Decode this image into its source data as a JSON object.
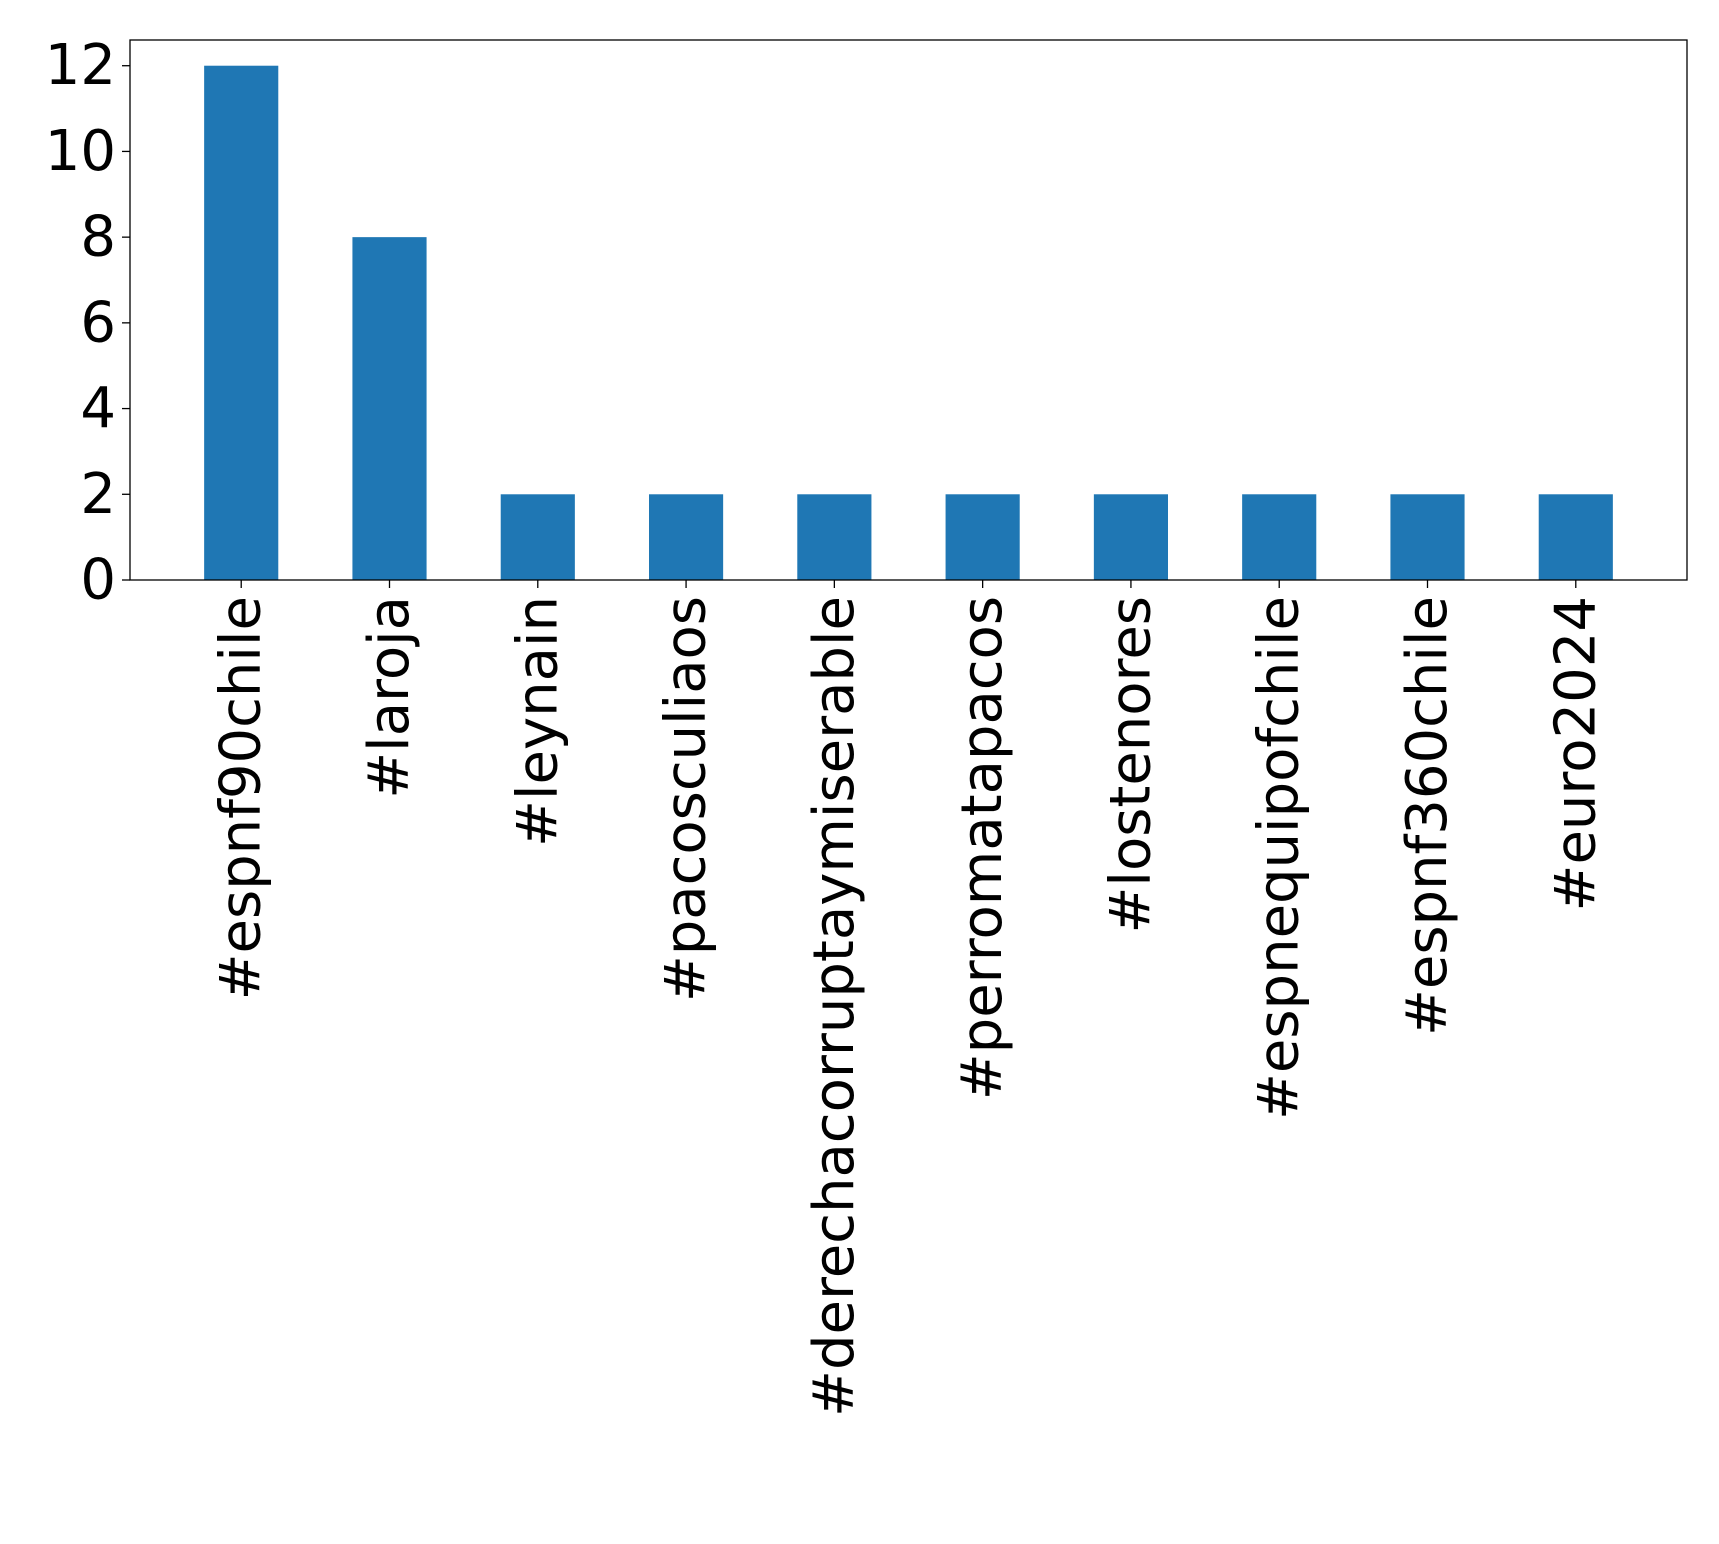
{
  "chart_data": {
    "type": "bar",
    "title": "",
    "xlabel": "",
    "ylabel": "",
    "categories": [
      "#espnf90chile",
      "#laroja",
      "#leynain",
      "#pacosculiaos",
      "#derechacorruptaymiserable",
      "#perromatapacos",
      "#lostenores",
      "#espnequipofchile",
      "#espnf360chile",
      "#euro2024"
    ],
    "values": [
      12,
      8,
      2,
      2,
      2,
      2,
      2,
      2,
      2,
      2
    ],
    "ylim": [
      0,
      12.6
    ],
    "yticks": [
      0,
      2,
      4,
      6,
      8,
      10,
      12
    ],
    "grid": false,
    "legend": "none",
    "bar_color": "#1f77b4",
    "axis_color": "#000000"
  }
}
